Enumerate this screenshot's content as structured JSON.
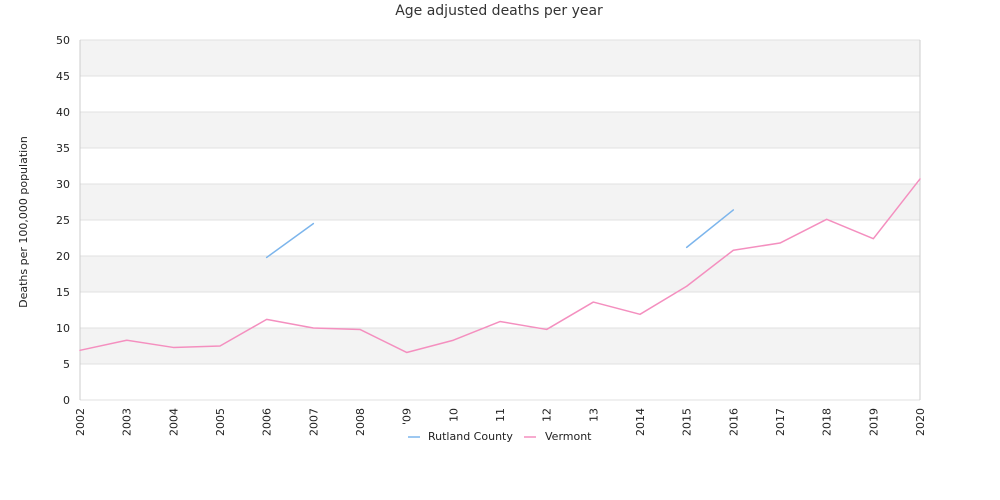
{
  "chart_data": {
    "type": "line",
    "title": "Age adjusted deaths per year",
    "xlabel": "",
    "ylabel": "Deaths per 100,000 population",
    "ylim": [
      0,
      50
    ],
    "yticks": [
      0,
      5,
      10,
      15,
      20,
      25,
      30,
      35,
      40,
      45,
      50
    ],
    "x": [
      "2002",
      "2003",
      "2004",
      "2005",
      "2006",
      "2007",
      "2008",
      "2009",
      "2010",
      "2011",
      "2012",
      "2013",
      "2014",
      "2015",
      "2016",
      "2017",
      "2018",
      "2019",
      "2020"
    ],
    "x_tick_labels": [
      "2002",
      "2003",
      "2004",
      "2005",
      "2006",
      "2007",
      "2008",
      "'09",
      "10",
      "11",
      "12",
      "13",
      "2014",
      "2015",
      "2016",
      "2017",
      "2018",
      "2019",
      "2020"
    ],
    "grid": "horizontal-bands",
    "legend_position": "bottom-center",
    "series": [
      {
        "name": "Rutland County",
        "color": "#7cb5ec",
        "values": [
          null,
          null,
          null,
          null,
          19.8,
          24.5,
          null,
          null,
          null,
          null,
          null,
          null,
          null,
          21.2,
          26.4,
          null,
          null,
          null,
          null
        ]
      },
      {
        "name": "Vermont",
        "color": "#f48fbf",
        "values": [
          6.9,
          8.3,
          7.3,
          7.5,
          11.2,
          10.0,
          9.8,
          6.6,
          8.3,
          10.9,
          9.8,
          13.6,
          11.9,
          15.8,
          20.8,
          21.8,
          25.1,
          22.4,
          30.7
        ]
      }
    ]
  },
  "colors": {
    "band": "#f3f3f3",
    "grid": "#e0e0e0",
    "axis": "#cccccc"
  }
}
